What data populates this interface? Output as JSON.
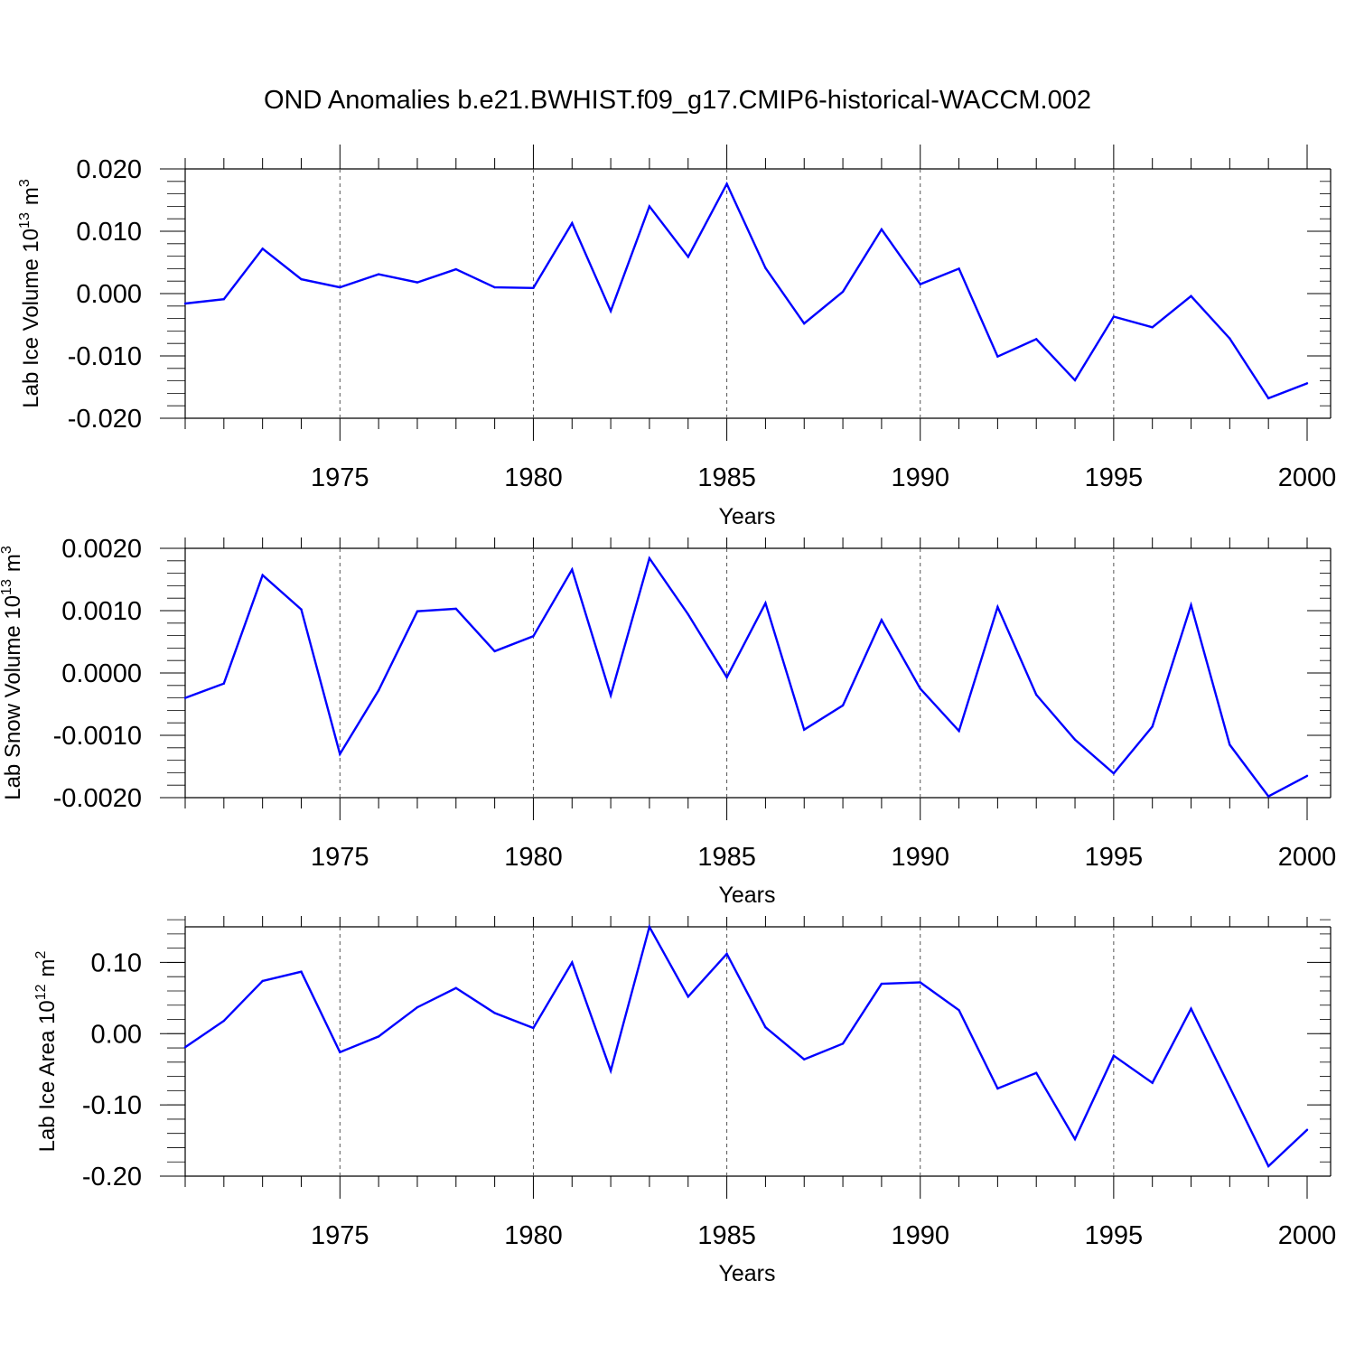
{
  "title": "OND Anomalies b.e21.BWHIST.f09_g17.CMIP6-historical-WACCM.002",
  "colors": {
    "line": "#0000ff",
    "axis": "#000000",
    "grid": "#555555"
  },
  "chart_data": [
    {
      "type": "line",
      "ylabel_main": "Lab Ice Volume 10",
      "ylabel_exp": "13",
      "ylabel_unit": "m",
      "ylabel_unit_exp": "3",
      "xlabel": "Years",
      "xlim": [
        1971,
        2000
      ],
      "ylim": [
        -0.02,
        0.02
      ],
      "yticks": [
        -0.02,
        -0.01,
        0.0,
        0.01,
        0.02
      ],
      "ytick_labels": [
        "-0.020",
        "-0.010",
        "0.000",
        "0.010",
        "0.020"
      ],
      "xticks": [
        1975,
        1980,
        1985,
        1990,
        1995,
        2000
      ],
      "xtick_labels": [
        "1975",
        "1980",
        "1985",
        "1990",
        "1995",
        "2000"
      ],
      "x": [
        1971,
        1972,
        1973,
        1974,
        1975,
        1976,
        1977,
        1978,
        1979,
        1980,
        1981,
        1982,
        1983,
        1984,
        1985,
        1986,
        1987,
        1988,
        1989,
        1990,
        1991,
        1992,
        1993,
        1994,
        1995,
        1996,
        1997,
        1998,
        1999,
        2000
      ],
      "series": [
        {
          "name": "Lab Ice Volume",
          "values": [
            -0.0016,
            -0.0009,
            0.0072,
            0.0023,
            0.001,
            0.0031,
            0.0018,
            0.0039,
            0.001,
            0.0009,
            0.0113,
            -0.0028,
            0.014,
            0.0059,
            0.0176,
            0.0041,
            -0.0048,
            0.0003,
            0.0103,
            0.0015,
            0.004,
            -0.0101,
            -0.0073,
            -0.0139,
            -0.0037,
            -0.0054,
            -0.0004,
            -0.0072,
            -0.0168,
            -0.0144
          ]
        }
      ]
    },
    {
      "type": "line",
      "ylabel_main": "Lab Snow Volume 10",
      "ylabel_exp": "13",
      "ylabel_unit": "m",
      "ylabel_unit_exp": "3",
      "xlabel": "Years",
      "xlim": [
        1971,
        2000
      ],
      "ylim": [
        -0.002,
        0.002
      ],
      "yticks": [
        -0.002,
        -0.001,
        0.0,
        0.001,
        0.002
      ],
      "ytick_labels": [
        "-0.0020",
        "-0.0010",
        "0.0000",
        "0.0010",
        "0.0020"
      ],
      "xticks": [
        1975,
        1980,
        1985,
        1990,
        1995,
        2000
      ],
      "xtick_labels": [
        "1975",
        "1980",
        "1985",
        "1990",
        "1995",
        "2000"
      ],
      "x": [
        1971,
        1972,
        1973,
        1974,
        1975,
        1976,
        1977,
        1978,
        1979,
        1980,
        1981,
        1982,
        1983,
        1984,
        1985,
        1986,
        1987,
        1988,
        1989,
        1990,
        1991,
        1992,
        1993,
        1994,
        1995,
        1996,
        1997,
        1998,
        1999,
        2000
      ],
      "series": [
        {
          "name": "Lab Snow Volume",
          "values": [
            -0.0004,
            -0.00017,
            0.00157,
            0.00102,
            -0.0013,
            -0.00028,
            0.00099,
            0.00103,
            0.00035,
            0.00059,
            0.00166,
            -0.00036,
            0.00184,
            0.00094,
            -7e-05,
            0.00112,
            -0.00091,
            -0.00052,
            0.00085,
            -0.00025,
            -0.00093,
            0.00106,
            -0.00035,
            -0.00107,
            -0.00161,
            -0.00086,
            0.00109,
            -0.00115,
            -0.00198,
            -0.00165
          ]
        }
      ]
    },
    {
      "type": "line",
      "ylabel_main": "Lab Ice Area 10",
      "ylabel_exp": "12",
      "ylabel_unit": "m",
      "ylabel_unit_exp": "2",
      "xlabel": "Years",
      "xlim": [
        1971,
        2000
      ],
      "ylim": [
        -0.2,
        0.15
      ],
      "yticks": [
        -0.2,
        -0.1,
        0.0,
        0.1
      ],
      "ytick_labels": [
        "-0.20",
        "-0.10",
        "0.00",
        "0.10"
      ],
      "xticks": [
        1975,
        1980,
        1985,
        1990,
        1995,
        2000
      ],
      "xtick_labels": [
        "1975",
        "1980",
        "1985",
        "1990",
        "1995",
        "2000"
      ],
      "x": [
        1971,
        1972,
        1973,
        1974,
        1975,
        1976,
        1977,
        1978,
        1979,
        1980,
        1981,
        1982,
        1983,
        1984,
        1985,
        1986,
        1987,
        1988,
        1989,
        1990,
        1991,
        1992,
        1993,
        1994,
        1995,
        1996,
        1997,
        1998,
        1999,
        2000
      ],
      "series": [
        {
          "name": "Lab Ice Area",
          "values": [
            -0.019,
            0.018,
            0.074,
            0.087,
            -0.026,
            -0.004,
            0.037,
            0.064,
            0.029,
            0.008,
            0.1,
            -0.052,
            0.15,
            0.052,
            0.112,
            0.009,
            -0.036,
            -0.014,
            0.07,
            0.072,
            0.033,
            -0.077,
            -0.055,
            -0.148,
            -0.031,
            -0.069,
            0.035,
            -0.075,
            -0.186,
            -0.135
          ]
        }
      ]
    }
  ]
}
